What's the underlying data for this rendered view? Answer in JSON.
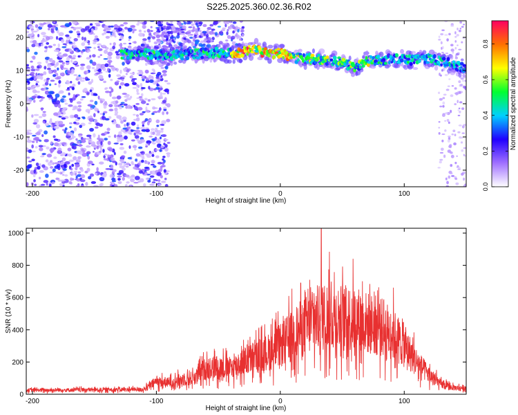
{
  "title": "S225.2025.360.02.36.R02",
  "chart_data": [
    {
      "type": "heatmap",
      "xlabel": "Height of straight line (km)",
      "ylabel": "Frequency (Hz)",
      "xlim": [
        -205,
        150
      ],
      "ylim": [
        -25,
        25
      ],
      "xticks": [
        -200,
        -100,
        0,
        100
      ],
      "yticks": [
        -20,
        -10,
        0,
        10,
        20
      ],
      "colorbar": {
        "label": "Normalized spectral amplitude",
        "range": [
          0,
          0.93
        ],
        "ticks": [
          0.0,
          0.2,
          0.4,
          0.6,
          0.8
        ],
        "colors": [
          "#ffffff",
          "#a070ff",
          "#2000ff",
          "#00d0ff",
          "#00ff30",
          "#ffff00",
          "#ff7000",
          "#ff0060"
        ]
      },
      "trace_freq_hz": {
        "x": [
          -128,
          -110,
          -90,
          -70,
          -50,
          -35,
          -20,
          -10,
          0,
          10,
          20,
          30,
          40,
          50,
          60,
          70,
          80,
          90,
          100,
          110,
          120,
          130,
          140,
          150
        ],
        "y": [
          15,
          15,
          14.5,
          15,
          15.5,
          15,
          16.5,
          15,
          15.5,
          14,
          13.5,
          13.5,
          13,
          12.5,
          11,
          13,
          13,
          13.5,
          13.5,
          13,
          13.5,
          13,
          11.5,
          10.5
        ]
      },
      "noise_region_x": [
        -205,
        -100
      ]
    },
    {
      "type": "line",
      "xlabel": "Height of straight line (km)",
      "ylabel": "SNR (10 * v/v)",
      "xlim": [
        -205,
        150
      ],
      "ylim": [
        0,
        1030
      ],
      "xticks": [
        -200,
        -100,
        0,
        100
      ],
      "yticks": [
        0,
        200,
        400,
        600,
        800,
        1000
      ],
      "color": "#e83030",
      "envelope": {
        "x": [
          -205,
          -110,
          -100,
          -90,
          -80,
          -70,
          -60,
          -50,
          -40,
          -30,
          -20,
          -10,
          0,
          10,
          20,
          30,
          40,
          50,
          60,
          70,
          80,
          90,
          100,
          110,
          120,
          130,
          140,
          150
        ],
        "y": [
          25,
          30,
          80,
          70,
          90,
          100,
          160,
          170,
          160,
          200,
          230,
          260,
          300,
          370,
          420,
          470,
          490,
          470,
          470,
          440,
          420,
          380,
          300,
          200,
          120,
          60,
          40,
          40
        ]
      },
      "peak": {
        "x": 33,
        "y": 1030
      }
    }
  ]
}
